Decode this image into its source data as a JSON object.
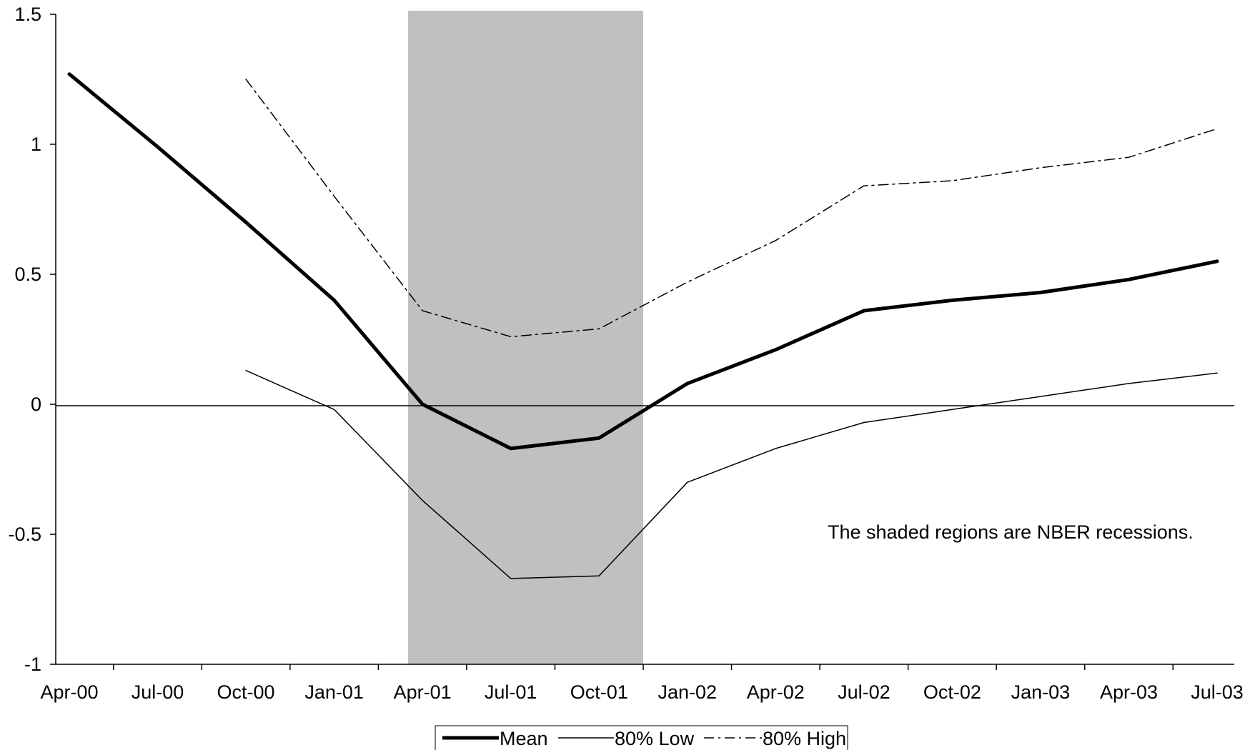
{
  "chart_data": {
    "type": "line",
    "title": "",
    "xlabel": "",
    "ylabel": "",
    "x": [
      "Apr-00",
      "Jul-00",
      "Oct-00",
      "Jan-01",
      "Apr-01",
      "Jul-01",
      "Oct-01",
      "Jan-02",
      "Apr-02",
      "Jul-02",
      "Oct-02",
      "Jan-03",
      "Apr-03",
      "Jul-03"
    ],
    "ylim": [
      -1,
      1.5
    ],
    "yticks": [
      "1.5",
      "1",
      "0.5",
      "0",
      "-0.5",
      "-1"
    ],
    "ytick_values": [
      1.5,
      1,
      0.5,
      0,
      -0.5,
      -1
    ],
    "grid": false,
    "zero_line": true,
    "recession_shading": {
      "start": "Apr-01",
      "end": "Nov-01",
      "color": "#c0c0c0"
    },
    "series": [
      {
        "name": "Mean",
        "style": "solid-thick",
        "color": "#000000",
        "values": [
          1.27,
          0.99,
          0.7,
          0.4,
          0.0,
          -0.17,
          -0.13,
          0.08,
          0.21,
          0.36,
          0.4,
          0.43,
          0.48,
          0.55
        ]
      },
      {
        "name": "80% Low",
        "style": "solid-thin",
        "color": "#000000",
        "values": [
          null,
          null,
          0.13,
          -0.02,
          -0.37,
          -0.67,
          -0.66,
          -0.3,
          -0.17,
          -0.07,
          -0.02,
          0.03,
          0.08,
          0.12
        ]
      },
      {
        "name": "80% High",
        "style": "dash-dot",
        "color": "#000000",
        "values": [
          null,
          null,
          1.25,
          0.8,
          0.36,
          0.26,
          0.29,
          0.47,
          0.63,
          0.84,
          0.86,
          0.91,
          0.95,
          1.06
        ]
      }
    ],
    "annotation": "The shaded regions are NBER recessions.",
    "legend_position": "bottom-center"
  }
}
